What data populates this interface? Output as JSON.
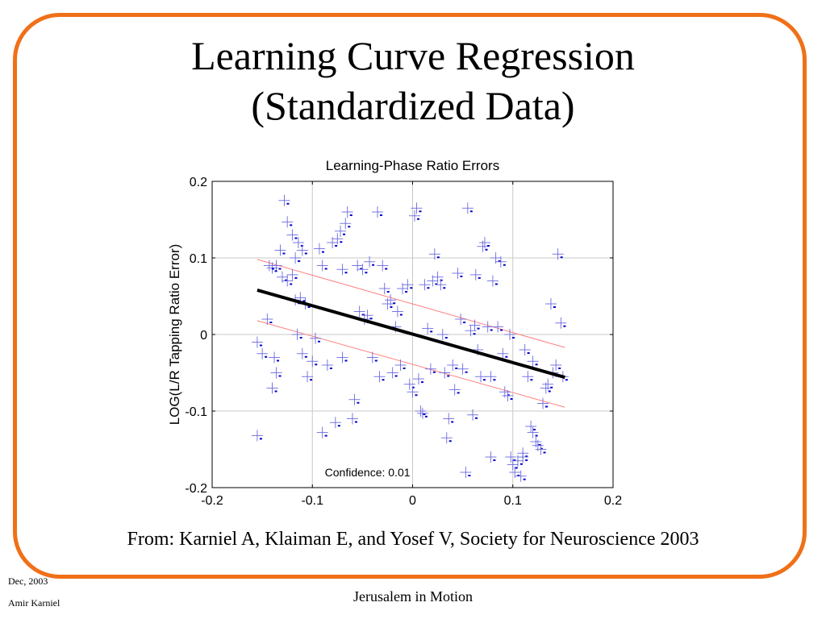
{
  "slide": {
    "title_line1": "Learning Curve Regression",
    "title_line2": "(Standardized Data)",
    "citation": "From: Karniel A, Klaiman E, and Yosef V, Society for Neuroscience 2003",
    "footer_date": "Dec, 2003",
    "footer_author": "Amir Karniel",
    "footer_center": "Jerusalem in Motion",
    "frame_color": "#f07018"
  },
  "chart_data": {
    "type": "scatter",
    "title": "Learning-Phase Ratio Errors",
    "ylabel": "LOG(L/R Tapping Ratio Error)",
    "xlabel": "",
    "xlim": [
      -0.2,
      0.2
    ],
    "ylim": [
      -0.2,
      0.2
    ],
    "xticks": [
      "-0.2",
      "-0.1",
      "0",
      "0.1",
      "0.2"
    ],
    "yticks": [
      "0.2",
      "0.1",
      "0",
      "-0.1",
      "-0.2"
    ],
    "grid": true,
    "annotation": "Confidence: 0.01",
    "marker_color": "#6a6ae0",
    "regression": {
      "x": [
        -0.155,
        0.152
      ],
      "y": [
        0.058,
        -0.056
      ],
      "color": "#000000"
    },
    "confidence_upper": {
      "x": [
        -0.155,
        0.152
      ],
      "y": [
        0.098,
        -0.017
      ],
      "color": "#ff8080"
    },
    "confidence_lower": {
      "x": [
        -0.155,
        0.152
      ],
      "y": [
        0.018,
        -0.095
      ],
      "color": "#ff8080"
    },
    "points": [
      [
        -0.128,
        0.175
      ],
      [
        -0.125,
        0.147
      ],
      [
        -0.12,
        0.13
      ],
      [
        -0.117,
        0.1
      ],
      [
        -0.114,
        0.12
      ],
      [
        -0.132,
        0.11
      ],
      [
        -0.136,
        0.09
      ],
      [
        -0.14,
        0.087
      ],
      [
        -0.143,
        0.09
      ],
      [
        -0.13,
        0.075
      ],
      [
        -0.125,
        0.07
      ],
      [
        -0.12,
        0.078
      ],
      [
        -0.11,
        0.11
      ],
      [
        -0.117,
        0.045
      ],
      [
        -0.107,
        0.04
      ],
      [
        -0.112,
        0.048
      ],
      [
        -0.155,
        -0.01
      ],
      [
        -0.15,
        -0.025
      ],
      [
        -0.145,
        0.02
      ],
      [
        -0.138,
        -0.03
      ],
      [
        -0.14,
        -0.07
      ],
      [
        -0.136,
        -0.05
      ],
      [
        -0.155,
        -0.132
      ],
      [
        -0.115,
        0.0
      ],
      [
        -0.11,
        -0.025
      ],
      [
        -0.105,
        -0.055
      ],
      [
        -0.1,
        -0.035
      ],
      [
        -0.097,
        -0.005
      ],
      [
        -0.093,
        0.112
      ],
      [
        -0.09,
        0.09
      ],
      [
        -0.09,
        -0.128
      ],
      [
        -0.085,
        -0.04
      ],
      [
        -0.08,
        0.12
      ],
      [
        -0.077,
        -0.115
      ],
      [
        -0.075,
        0.125
      ],
      [
        -0.072,
        0.135
      ],
      [
        -0.07,
        0.085
      ],
      [
        -0.07,
        -0.03
      ],
      [
        -0.067,
        0.145
      ],
      [
        -0.065,
        0.16
      ],
      [
        -0.06,
        -0.11
      ],
      [
        -0.058,
        -0.085
      ],
      [
        -0.055,
        0.09
      ],
      [
        -0.053,
        0.03
      ],
      [
        -0.05,
        0.085
      ],
      [
        -0.048,
        0.02
      ],
      [
        -0.045,
        0.025
      ],
      [
        -0.043,
        0.095
      ],
      [
        -0.04,
        -0.03
      ],
      [
        -0.035,
        0.16
      ],
      [
        -0.033,
        -0.055
      ],
      [
        -0.03,
        0.09
      ],
      [
        -0.028,
        0.06
      ],
      [
        -0.025,
        0.04
      ],
      [
        -0.022,
        0.045
      ],
      [
        -0.02,
        -0.05
      ],
      [
        -0.017,
        0.01
      ],
      [
        -0.015,
        0.03
      ],
      [
        -0.012,
        -0.04
      ],
      [
        -0.01,
        0.06
      ],
      [
        -0.005,
        0.065
      ],
      [
        -0.003,
        -0.065
      ],
      [
        0.0,
        -0.075
      ],
      [
        0.002,
        0.155
      ],
      [
        0.004,
        0.165
      ],
      [
        0.006,
        -0.058
      ],
      [
        0.008,
        -0.1
      ],
      [
        0.01,
        -0.103
      ],
      [
        0.012,
        0.065
      ],
      [
        0.015,
        0.008
      ],
      [
        0.018,
        -0.045
      ],
      [
        0.02,
        0.07
      ],
      [
        0.022,
        0.105
      ],
      [
        0.025,
        0.075
      ],
      [
        0.028,
        0.065
      ],
      [
        0.03,
        0.0
      ],
      [
        0.032,
        -0.05
      ],
      [
        0.034,
        -0.135
      ],
      [
        0.036,
        -0.11
      ],
      [
        0.04,
        -0.04
      ],
      [
        0.042,
        -0.072
      ],
      [
        0.045,
        0.08
      ],
      [
        0.048,
        0.02
      ],
      [
        0.05,
        -0.045
      ],
      [
        0.053,
        -0.18
      ],
      [
        0.055,
        0.165
      ],
      [
        0.058,
        0.005
      ],
      [
        0.06,
        -0.105
      ],
      [
        0.062,
        0.012
      ],
      [
        0.065,
        -0.02
      ],
      [
        0.068,
        -0.055
      ],
      [
        0.07,
        0.115
      ],
      [
        0.072,
        0.12
      ],
      [
        0.075,
        0.01
      ],
      [
        0.078,
        -0.055
      ],
      [
        0.08,
        0.07
      ],
      [
        0.083,
        0.1
      ],
      [
        0.085,
        0.01
      ],
      [
        0.088,
        0.095
      ],
      [
        0.09,
        -0.025
      ],
      [
        0.092,
        -0.075
      ],
      [
        0.095,
        -0.08
      ],
      [
        0.098,
        -0.16
      ],
      [
        0.1,
        -0.17
      ],
      [
        0.102,
        -0.18
      ],
      [
        0.105,
        -0.165
      ],
      [
        0.108,
        -0.185
      ],
      [
        0.11,
        -0.155
      ],
      [
        0.112,
        -0.02
      ],
      [
        0.115,
        -0.055
      ],
      [
        0.118,
        -0.12
      ],
      [
        0.12,
        -0.128
      ],
      [
        0.123,
        -0.14
      ],
      [
        0.125,
        -0.145
      ],
      [
        0.128,
        -0.15
      ],
      [
        0.13,
        -0.09
      ],
      [
        0.133,
        -0.07
      ],
      [
        0.135,
        -0.065
      ],
      [
        0.138,
        0.04
      ],
      [
        0.14,
        -0.05
      ],
      [
        0.143,
        -0.04
      ],
      [
        0.145,
        0.105
      ],
      [
        0.148,
        0.015
      ],
      [
        0.15,
        -0.055
      ],
      [
        0.078,
        -0.16
      ],
      [
        0.063,
        0.078
      ],
      [
        0.097,
        0.0
      ],
      [
        0.11,
        -0.16
      ],
      [
        0.12,
        -0.035
      ]
    ]
  }
}
